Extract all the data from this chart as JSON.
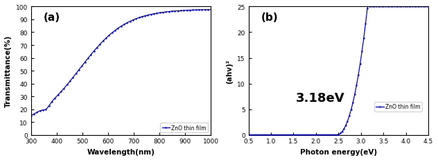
{
  "panel_a": {
    "label": "(a)",
    "xlabel": "Wavelength(nm)",
    "ylabel": "Transmittance(%)",
    "xlim": [
      300,
      1000
    ],
    "ylim": [
      0,
      100
    ],
    "xticks": [
      300,
      400,
      500,
      600,
      700,
      800,
      900,
      1000
    ],
    "yticks": [
      0,
      10,
      20,
      30,
      40,
      50,
      60,
      70,
      80,
      90,
      100
    ],
    "legend": "ZnO thin film",
    "line_color": "#0000cc",
    "marker": ".",
    "markersize": 1.5
  },
  "panel_b": {
    "label": "(b)",
    "xlabel": "Photon energy(eV)",
    "ylabel": "(ahv)²",
    "xlim": [
      0.5,
      4.5
    ],
    "ylim": [
      0,
      25
    ],
    "xticks": [
      0.5,
      1.0,
      1.5,
      2.0,
      2.5,
      3.0,
      3.5,
      4.0,
      4.5
    ],
    "yticks": [
      0,
      5,
      10,
      15,
      20,
      25
    ],
    "legend": "ZnO thin film",
    "line_color": "#0000cc",
    "marker": ".",
    "markersize": 1.5,
    "bandgap_text": "3.18eV",
    "bandgap_x": 1.55,
    "bandgap_y": 6.5,
    "tangent_color": "#aaaaaa",
    "tangent_x1": 3.18,
    "tangent_x2": 3.68
  }
}
